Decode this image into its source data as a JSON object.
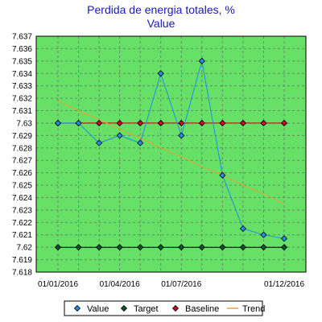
{
  "chart_data": {
    "type": "line",
    "title": "Perdida de energia totales, %",
    "subtitle": "Value",
    "xlabel": "",
    "ylabel": "",
    "x": [
      "2016-01",
      "2016-02",
      "2016-03",
      "2016-04",
      "2016-05",
      "2016-06",
      "2016-07",
      "2016-08",
      "2016-09",
      "2016-10",
      "2016-11",
      "2016-12"
    ],
    "x_tick_labels": [
      {
        "x": "2016-01",
        "label": "01/01/2016"
      },
      {
        "x": "2016-04",
        "label": "01/04/2016"
      },
      {
        "x": "2016-07",
        "label": "01/07/2016"
      },
      {
        "x": "2016-12",
        "label": "01/12/2016"
      }
    ],
    "ylim": [
      7.618,
      7.637
    ],
    "y_ticks": [
      "7.618",
      "7.619",
      "7.62",
      "7.621",
      "7.622",
      "7.623",
      "7.624",
      "7.625",
      "7.626",
      "7.627",
      "7.628",
      "7.629",
      "7.63",
      "7.631",
      "7.632",
      "7.633",
      "7.634",
      "7.635",
      "7.636",
      "7.637"
    ],
    "grid": true,
    "legend_position": "bottom",
    "background_color": "#66e066",
    "series": [
      {
        "name": "Value",
        "color": "#1f8fe8",
        "marker": "diamond",
        "marker_color": "#1f8fe8",
        "values": [
          7.63,
          7.63,
          7.6284,
          7.629,
          7.6284,
          7.634,
          7.629,
          7.635,
          7.6258,
          7.6215,
          7.621,
          7.6207
        ]
      },
      {
        "name": "Target",
        "color": "#000000",
        "marker": "diamond",
        "marker_color": "#005a2a",
        "values": [
          7.62,
          7.62,
          7.62,
          7.62,
          7.62,
          7.62,
          7.62,
          7.62,
          7.62,
          7.62,
          7.62,
          7.62
        ]
      },
      {
        "name": "Baseline",
        "color": "#c00000",
        "marker": "diamond",
        "marker_color": "#d0002a",
        "values": [
          7.63,
          7.63,
          7.63,
          7.63,
          7.63,
          7.63,
          7.63,
          7.63,
          7.63,
          7.63,
          7.63,
          7.63
        ]
      },
      {
        "name": "Trend",
        "color": "#f0a030",
        "marker": "none",
        "values": [
          7.6318,
          7.631,
          7.6303,
          7.6295,
          7.6288,
          7.628,
          7.6273,
          7.6265,
          7.6258,
          7.625,
          7.6243,
          7.6235
        ]
      }
    ]
  }
}
